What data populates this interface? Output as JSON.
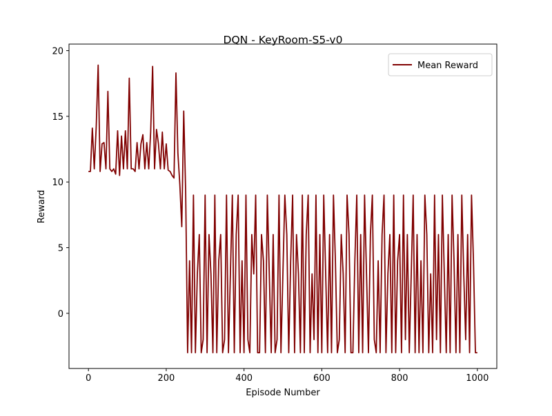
{
  "chart_data": {
    "type": "line",
    "title": "DQN - KeyRoom-S5-v0",
    "x_label": "Episode Number",
    "y_label": "Reward",
    "x": [
      0,
      5,
      10,
      15,
      20,
      25,
      30,
      35,
      40,
      45,
      50,
      55,
      60,
      65,
      70,
      75,
      80,
      85,
      90,
      95,
      100,
      105,
      110,
      115,
      120,
      125,
      130,
      135,
      140,
      145,
      150,
      155,
      160,
      165,
      170,
      175,
      180,
      185,
      190,
      195,
      200,
      205,
      210,
      215,
      220,
      225,
      230,
      235,
      240,
      245,
      250,
      255,
      260,
      265,
      270,
      275,
      280,
      285,
      290,
      295,
      300,
      305,
      310,
      315,
      320,
      325,
      330,
      335,
      340,
      345,
      350,
      355,
      360,
      365,
      370,
      375,
      380,
      385,
      390,
      395,
      400,
      405,
      410,
      415,
      420,
      425,
      430,
      435,
      440,
      445,
      450,
      455,
      460,
      465,
      470,
      475,
      480,
      485,
      490,
      495,
      500,
      505,
      510,
      515,
      520,
      525,
      530,
      535,
      540,
      545,
      550,
      555,
      560,
      565,
      570,
      575,
      580,
      585,
      590,
      595,
      600,
      605,
      610,
      615,
      620,
      625,
      630,
      635,
      640,
      645,
      650,
      655,
      660,
      665,
      670,
      675,
      680,
      685,
      690,
      695,
      700,
      705,
      710,
      715,
      720,
      725,
      730,
      735,
      740,
      745,
      750,
      755,
      760,
      765,
      770,
      775,
      780,
      785,
      790,
      795,
      800,
      805,
      810,
      815,
      820,
      825,
      830,
      835,
      840,
      845,
      850,
      855,
      860,
      865,
      870,
      875,
      880,
      885,
      890,
      895,
      900,
      905,
      910,
      915,
      920,
      925,
      930,
      935,
      940,
      945,
      950,
      955,
      960,
      965,
      970,
      975,
      980,
      985,
      990,
      995,
      1000
    ],
    "series": [
      {
        "name": "Mean Reward",
        "color": "#800000",
        "values": [
          10.8,
          10.8,
          14.1,
          11,
          14.2,
          18.9,
          10.8,
          12.9,
          13,
          11,
          16.9,
          11,
          10.8,
          11,
          10.6,
          13.9,
          10.5,
          13.5,
          11,
          13.9,
          11,
          17.9,
          11,
          11,
          10.8,
          13,
          11,
          12.9,
          13.6,
          11,
          13,
          11,
          13.8,
          18.8,
          11,
          14,
          12.9,
          11,
          13.8,
          11,
          12.9,
          10.9,
          10.8,
          10.5,
          10.3,
          18.3,
          12.2,
          9.8,
          6.6,
          15.4,
          9.2,
          -3,
          4,
          -3,
          9,
          -3,
          3,
          6,
          -3,
          -2,
          9,
          -3,
          6,
          3,
          -3,
          9,
          -3,
          4,
          6,
          -3,
          -2,
          9,
          -3,
          3,
          9,
          -3,
          6,
          9,
          -3,
          4,
          -3,
          9,
          -2,
          -3,
          6,
          3,
          9,
          -3,
          -3,
          6,
          4,
          -3,
          9,
          3,
          -3,
          6,
          -3,
          -2,
          9,
          -3,
          3,
          9,
          6,
          -3,
          4,
          9,
          -3,
          6,
          3,
          -3,
          9,
          -3,
          6,
          9,
          -3,
          3,
          -2,
          9,
          -3,
          6,
          -3,
          9,
          3,
          -3,
          6,
          -3,
          9,
          4,
          -3,
          -2,
          6,
          3,
          -3,
          9,
          6,
          -3,
          -3,
          4,
          9,
          -3,
          6,
          -3,
          9,
          3,
          -3,
          6,
          9,
          -2,
          -3,
          4,
          -3,
          6,
          9,
          -3,
          3,
          6,
          -3,
          9,
          -3,
          4,
          6,
          -3,
          9,
          -2,
          6,
          -3,
          3,
          9,
          -3,
          6,
          -3,
          4,
          -3,
          9,
          6,
          -3,
          3,
          -3,
          9,
          -2,
          6,
          -3,
          9,
          3,
          -3,
          6,
          -3,
          9,
          4,
          -3,
          6,
          -3,
          9,
          3,
          -2,
          6,
          -3,
          9,
          4,
          -3,
          -3
        ]
      }
    ],
    "xlim": [
      -50,
      1050
    ],
    "ylim": [
      -4.2,
      20.5
    ],
    "xticks": [
      0,
      200,
      400,
      600,
      800,
      1000
    ],
    "yticks": [
      0,
      5,
      10,
      15,
      20
    ],
    "grid": false,
    "legend": "upper right"
  }
}
